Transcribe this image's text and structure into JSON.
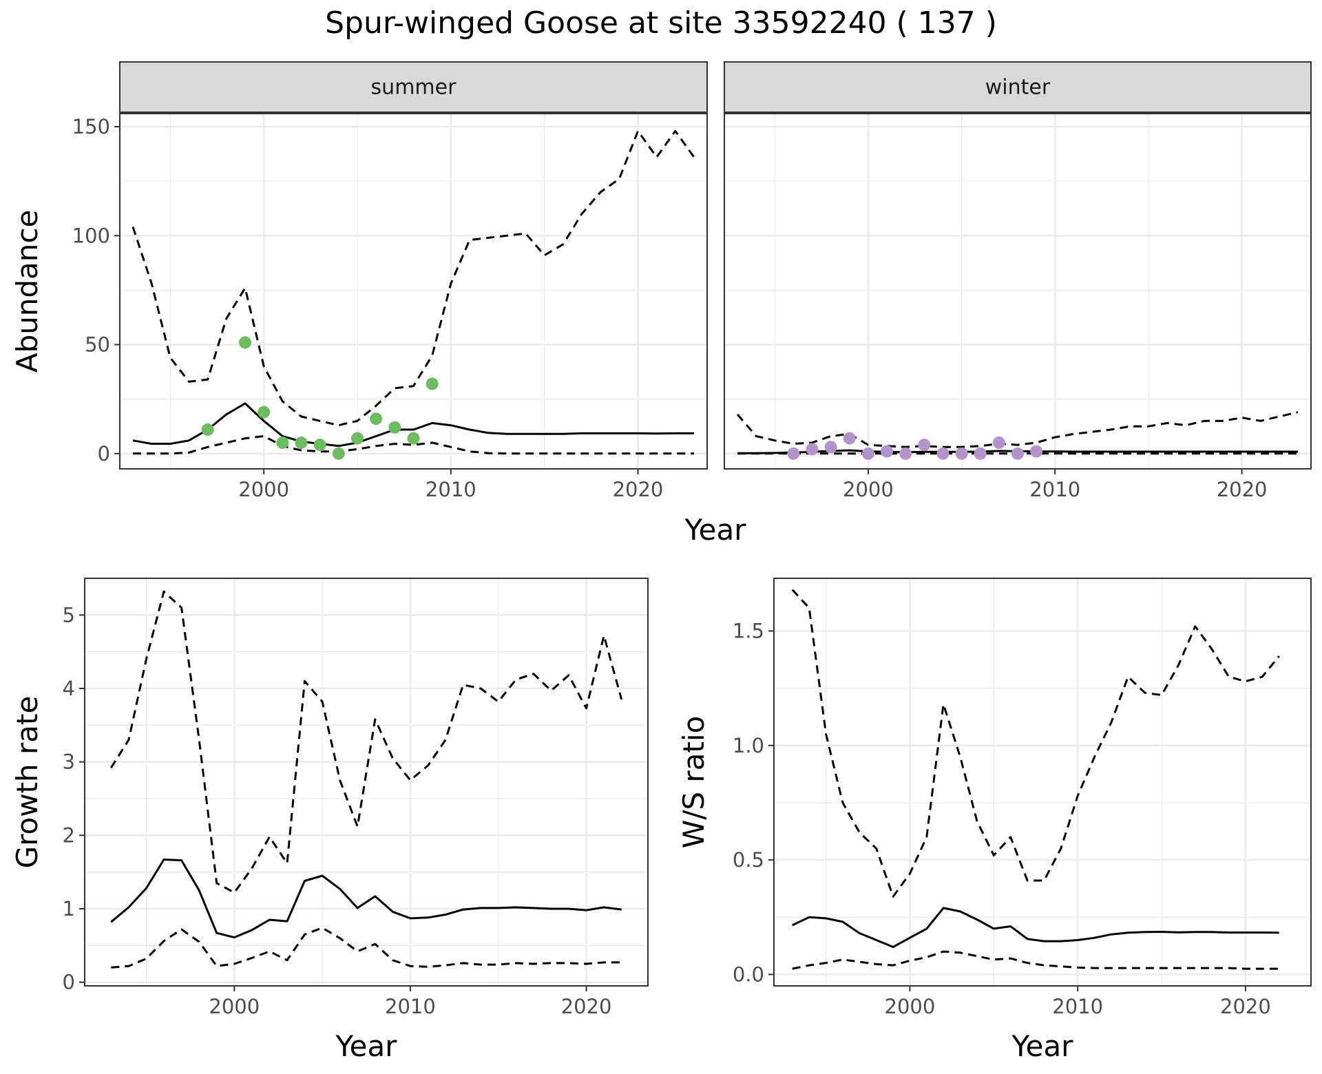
{
  "title": "Spur-winged Goose at site 33592240 ( 137 )",
  "colors": {
    "summer_points": "#6cbd5e",
    "winter_points": "#b293cb",
    "strip_fill": "#d9d9d9",
    "line": "#000000",
    "grid": "#ebebeb"
  },
  "chart_data": [
    {
      "id": "abundance",
      "type": "line",
      "ylabel": "Abundance",
      "xlabel": "Year",
      "xlim": [
        1992.3,
        2023.7
      ],
      "ylim": [
        -7,
        156
      ],
      "xticks": [
        2000,
        2010,
        2020
      ],
      "yticks": [
        0,
        50,
        100,
        150
      ],
      "facets": [
        {
          "strip": "summer",
          "median": {
            "x": [
              1993,
              1994,
              1995,
              1996,
              1997,
              1998,
              1999,
              2000,
              2001,
              2002,
              2003,
              2004,
              2005,
              2006,
              2007,
              2008,
              2009,
              2010,
              2011,
              2012,
              2013,
              2014,
              2015,
              2016,
              2017,
              2018,
              2019,
              2020,
              2021,
              2022,
              2023
            ],
            "y": [
              6,
              4.5,
              4.5,
              6,
              11,
              18,
              23,
              15,
              8,
              5.5,
              4.5,
              3.5,
              5,
              8,
              11,
              11,
              14,
              13,
              11,
              9.5,
              9,
              9,
              9,
              9,
              9.3,
              9.3,
              9.3,
              9.3,
              9.2,
              9.3,
              9.3
            ]
          },
          "upper": {
            "x": [
              1993,
              1994,
              1995,
              1996,
              1997,
              1998,
              1999,
              2000,
              2001,
              2002,
              2003,
              2004,
              2005,
              2006,
              2007,
              2008,
              2009,
              2010,
              2011,
              2012,
              2013,
              2014,
              2015,
              2016,
              2017,
              2018,
              2019,
              2020,
              2021,
              2022,
              2023
            ],
            "y": [
              104,
              78,
              44,
              33,
              34,
              62,
              76,
              40,
              24,
              17,
              15,
              13,
              15,
              22,
              30,
              31,
              45,
              78,
              98,
              99,
              100,
              101,
              91,
              96,
              110,
              120,
              126,
              148,
              136,
              148,
              136
            ]
          },
          "lower": {
            "x": [
              1993,
              1994,
              1995,
              1996,
              1997,
              1998,
              1999,
              2000,
              2001,
              2002,
              2003,
              2004,
              2005,
              2006,
              2007,
              2008,
              2009,
              2010,
              2011,
              2012,
              2013,
              2014,
              2015,
              2016,
              2017,
              2018,
              2019,
              2020,
              2021,
              2022,
              2023
            ],
            "y": [
              0,
              0,
              0,
              0.5,
              3,
              5,
              7,
              8,
              3.5,
              1.5,
              1,
              1,
              2,
              3.5,
              4.5,
              4,
              5,
              3,
              1,
              0.2,
              0,
              0,
              0,
              0,
              0,
              0,
              0,
              0,
              0,
              0,
              0
            ]
          },
          "points": {
            "x": [
              1997,
              1999,
              2000,
              2001,
              2002,
              2003,
              2004,
              2005,
              2006,
              2007,
              2008,
              2009
            ],
            "y": [
              11,
              51,
              19,
              5,
              5,
              4,
              0,
              7,
              16,
              12,
              7,
              32
            ]
          }
        },
        {
          "strip": "winter",
          "median": {
            "x": [
              1993,
              1994,
              1995,
              1996,
              1997,
              1998,
              1999,
              2000,
              2001,
              2002,
              2003,
              2004,
              2005,
              2006,
              2007,
              2008,
              2009,
              2010,
              2011,
              2012,
              2013,
              2014,
              2015,
              2016,
              2017,
              2018,
              2019,
              2020,
              2021,
              2022,
              2023
            ],
            "y": [
              0.2,
              0.2,
              0.3,
              0.5,
              0.8,
              1.2,
              1.5,
              1,
              0.8,
              0.6,
              0.8,
              0.8,
              0.8,
              0.9,
              1.2,
              1.1,
              1,
              1,
              0.9,
              0.9,
              0.9,
              0.9,
              0.9,
              0.9,
              0.9,
              0.9,
              0.9,
              0.9,
              0.9,
              0.9,
              0.9
            ]
          },
          "upper": {
            "x": [
              1993,
              1994,
              1995,
              1996,
              1997,
              1998,
              1999,
              2000,
              2001,
              2002,
              2003,
              2004,
              2005,
              2006,
              2007,
              2008,
              2009,
              2010,
              2011,
              2012,
              2013,
              2014,
              2015,
              2016,
              2017,
              2018,
              2019,
              2020,
              2021,
              2022,
              2023
            ],
            "y": [
              18,
              8,
              6,
              4.5,
              5,
              8,
              9,
              4,
              3.5,
              3,
              3.5,
              3,
              3,
              3.5,
              4.5,
              4,
              5,
              7.5,
              9,
              10,
              11,
              12.5,
              12.5,
              14,
              13,
              15,
              15,
              16.5,
              15,
              17,
              19
            ]
          },
          "lower": {
            "x": [
              1993,
              1994,
              1995,
              1996,
              1997,
              1998,
              1999,
              2000,
              2001,
              2002,
              2003,
              2004,
              2005,
              2006,
              2007,
              2008,
              2009,
              2010,
              2011,
              2012,
              2013,
              2014,
              2015,
              2016,
              2017,
              2018,
              2019,
              2020,
              2021,
              2022,
              2023
            ],
            "y": [
              0,
              0,
              0,
              0,
              0,
              0,
              0,
              0,
              0,
              0,
              0,
              0,
              0,
              0,
              0,
              0,
              0,
              0,
              0,
              0,
              0,
              0,
              0,
              0,
              0,
              0,
              0,
              0,
              0,
              0,
              0
            ]
          },
          "points": {
            "x": [
              1996,
              1997,
              1998,
              1999,
              2000,
              2001,
              2002,
              2003,
              2004,
              2005,
              2006,
              2007,
              2008,
              2009
            ],
            "y": [
              0,
              2,
              3,
              7,
              0,
              1,
              0,
              4,
              0,
              0,
              0,
              5,
              0,
              1
            ]
          }
        }
      ]
    },
    {
      "id": "growth",
      "type": "line",
      "ylabel": "Growth rate",
      "xlabel": "Year",
      "xlim": [
        1991.5,
        2023.5
      ],
      "ylim": [
        -0.05,
        5.5
      ],
      "xticks": [
        2000,
        2010,
        2020
      ],
      "yticks": [
        0,
        1,
        2,
        3,
        4,
        5
      ],
      "median": {
        "x": [
          1993,
          1994,
          1995,
          1996,
          1997,
          1998,
          1999,
          2000,
          2001,
          2002,
          2003,
          2004,
          2005,
          2006,
          2007,
          2008,
          2009,
          2010,
          2011,
          2012,
          2013,
          2014,
          2015,
          2016,
          2017,
          2018,
          2019,
          2020,
          2021,
          2022
        ],
        "y": [
          0.82,
          1.02,
          1.28,
          1.67,
          1.66,
          1.25,
          0.67,
          0.61,
          0.71,
          0.85,
          0.83,
          1.38,
          1.45,
          1.27,
          1.01,
          1.17,
          0.96,
          0.87,
          0.88,
          0.92,
          0.99,
          1.01,
          1.01,
          1.02,
          1.01,
          1.0,
          1.0,
          0.98,
          1.02,
          0.99
        ]
      },
      "upper": {
        "x": [
          1993,
          1994,
          1995,
          1996,
          1997,
          1998,
          1999,
          2000,
          2001,
          2002,
          2003,
          2004,
          2005,
          2006,
          2007,
          2008,
          2009,
          2010,
          2011,
          2012,
          2013,
          2014,
          2015,
          2016,
          2017,
          2018,
          2019,
          2020,
          2021,
          2022
        ],
        "y": [
          2.92,
          3.3,
          4.4,
          5.32,
          5.1,
          3.3,
          1.35,
          1.22,
          1.55,
          1.98,
          1.62,
          4.1,
          3.82,
          2.75,
          2.12,
          3.58,
          3.05,
          2.75,
          2.95,
          3.3,
          4.05,
          4.0,
          3.82,
          4.12,
          4.2,
          3.97,
          4.18,
          3.73,
          4.72,
          3.85
        ]
      },
      "lower": {
        "x": [
          1993,
          1994,
          1995,
          1996,
          1997,
          1998,
          1999,
          2000,
          2001,
          2002,
          2003,
          2004,
          2005,
          2006,
          2007,
          2008,
          2009,
          2010,
          2011,
          2012,
          2013,
          2014,
          2015,
          2016,
          2017,
          2018,
          2019,
          2020,
          2021,
          2022
        ],
        "y": [
          0.2,
          0.22,
          0.32,
          0.56,
          0.72,
          0.55,
          0.22,
          0.25,
          0.33,
          0.42,
          0.3,
          0.65,
          0.74,
          0.6,
          0.42,
          0.52,
          0.3,
          0.22,
          0.21,
          0.23,
          0.26,
          0.24,
          0.24,
          0.26,
          0.25,
          0.26,
          0.26,
          0.25,
          0.27,
          0.27
        ]
      }
    },
    {
      "id": "ratio",
      "type": "line",
      "ylabel": "W/S ratio",
      "xlabel": "Year",
      "xlim": [
        1991.9,
        2023.9
      ],
      "ylim": [
        -0.05,
        1.73
      ],
      "xticks": [
        2000,
        2010,
        2020
      ],
      "yticks": [
        0.0,
        0.5,
        1.0,
        1.5
      ],
      "yticklabels": [
        "0.0",
        "0.5",
        "1.0",
        "1.5"
      ],
      "median": {
        "x": [
          1993,
          1994,
          1995,
          1996,
          1997,
          1998,
          1999,
          2000,
          2001,
          2002,
          2003,
          2004,
          2005,
          2006,
          2007,
          2008,
          2009,
          2010,
          2011,
          2012,
          2013,
          2014,
          2015,
          2016,
          2017,
          2018,
          2019,
          2020,
          2021,
          2022
        ],
        "y": [
          0.215,
          0.25,
          0.245,
          0.23,
          0.18,
          0.15,
          0.12,
          0.16,
          0.2,
          0.29,
          0.275,
          0.24,
          0.2,
          0.21,
          0.155,
          0.145,
          0.145,
          0.15,
          0.16,
          0.175,
          0.182,
          0.185,
          0.186,
          0.184,
          0.185,
          0.185,
          0.183,
          0.183,
          0.183,
          0.182
        ]
      },
      "upper": {
        "x": [
          1993,
          1994,
          1995,
          1996,
          1997,
          1998,
          1999,
          2000,
          2001,
          2002,
          2003,
          2004,
          2005,
          2006,
          2007,
          2008,
          2009,
          2010,
          2011,
          2012,
          2013,
          2014,
          2015,
          2016,
          2017,
          2018,
          2019,
          2020,
          2021,
          2022
        ],
        "y": [
          1.68,
          1.6,
          1.05,
          0.75,
          0.62,
          0.55,
          0.34,
          0.44,
          0.6,
          1.18,
          0.95,
          0.67,
          0.52,
          0.6,
          0.41,
          0.41,
          0.55,
          0.78,
          0.95,
          1.1,
          1.3,
          1.23,
          1.22,
          1.35,
          1.52,
          1.42,
          1.3,
          1.28,
          1.3,
          1.39
        ]
      },
      "lower": {
        "x": [
          1993,
          1994,
          1995,
          1996,
          1997,
          1998,
          1999,
          2000,
          2001,
          2002,
          2003,
          2004,
          2005,
          2006,
          2007,
          2008,
          2009,
          2010,
          2011,
          2012,
          2013,
          2014,
          2015,
          2016,
          2017,
          2018,
          2019,
          2020,
          2021,
          2022
        ],
        "y": [
          0.025,
          0.04,
          0.05,
          0.065,
          0.055,
          0.045,
          0.04,
          0.06,
          0.075,
          0.1,
          0.095,
          0.08,
          0.065,
          0.07,
          0.05,
          0.04,
          0.035,
          0.03,
          0.028,
          0.028,
          0.028,
          0.028,
          0.028,
          0.028,
          0.028,
          0.028,
          0.028,
          0.025,
          0.025,
          0.025
        ]
      }
    }
  ]
}
